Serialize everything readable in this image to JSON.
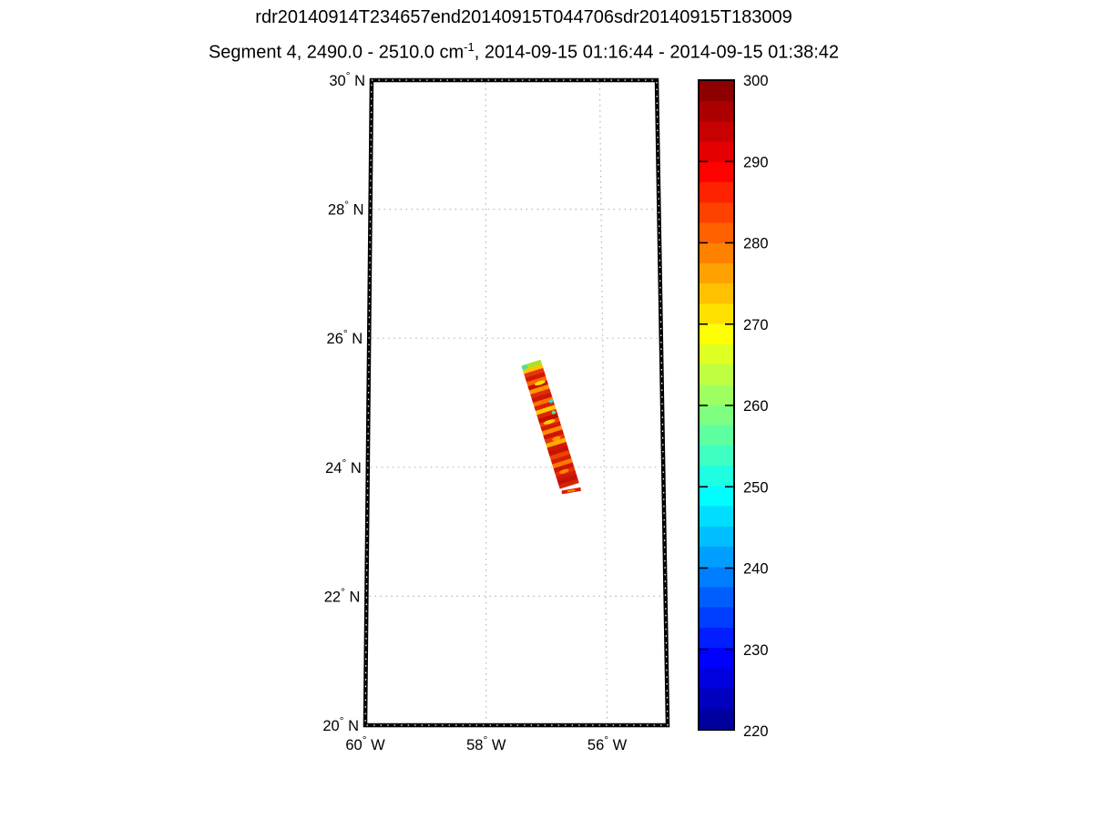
{
  "header": {
    "title_line1": "rdr20140914T234657end20140915T044706sdr20140915T183009",
    "title_line2_prefix": "Segment 4, 2490.0 - 2510.0 cm",
    "title_line2_sup": "-1",
    "title_line2_suffix": ", 2014-09-15 01:16:44 - 2014-09-15 01:38:42"
  },
  "chart_data": {
    "type": "heatmap",
    "subtype": "satellite-swath-on-map",
    "lat_axis": {
      "min": 20,
      "max": 30,
      "tick_values": [
        20,
        22,
        24,
        26,
        28,
        30
      ],
      "tick_suffix": "N",
      "gridline_values": [
        22,
        24,
        26,
        28
      ]
    },
    "lon_axis": {
      "min": -60,
      "max": -55,
      "tick_values": [
        -60,
        -58,
        -56
      ],
      "tick_suffix": "W",
      "gridline_values": [
        -58,
        -56
      ]
    },
    "grid": {
      "visible": true,
      "style": "dotted",
      "color": "#b5b5b5"
    },
    "frame": {
      "color": "#000000",
      "inner_dots_color": "#ffffff"
    },
    "colorbar": {
      "min": 220,
      "max": 300,
      "tick_values": [
        300,
        290,
        280,
        270,
        260,
        250,
        240,
        230,
        220
      ],
      "colormap": "jet",
      "jet_stops": [
        {
          "pos": 0.0,
          "color": "#00008f"
        },
        {
          "pos": 0.111,
          "color": "#0000ff"
        },
        {
          "pos": 0.361,
          "color": "#00ffff"
        },
        {
          "pos": 0.611,
          "color": "#ffff00"
        },
        {
          "pos": 0.861,
          "color": "#ff0000"
        },
        {
          "pos": 1.0,
          "color": "#800000"
        }
      ]
    },
    "swath": {
      "description": "observed brightness-temperature swath, mostly 285-300 range",
      "top": {
        "lat": 25.62,
        "lon": -57.23
      },
      "bottom": {
        "lat": 23.71,
        "lon": -56.59
      },
      "width_lon_deg": 0.342,
      "stripe_colors": [
        "#a8e32a",
        "#ffc400",
        "#e63311",
        "#cf1a02",
        "#ff6600",
        "#c91303",
        "#ff9500",
        "#df2a07",
        "#cc1505",
        "#ff7300",
        "#d92104",
        "#ffc800",
        "#dd2503",
        "#c01000",
        "#ef4102",
        "#d41b03",
        "#ff8c00",
        "#cc1404",
        "#e63607",
        "#ffae00",
        "#d11703",
        "#c91204",
        "#ee4403",
        "#d41e02",
        "#ff7700",
        "#cd1504",
        "#e22e03",
        "#d0190a",
        "#c41206",
        "#d22705"
      ],
      "speckles": [
        {
          "t": 0.02,
          "u": 0.92,
          "w": 0.3,
          "color": "#35e0c0"
        },
        {
          "t": 0.33,
          "u": 0.05,
          "w": 0.22,
          "color": "#2fd8e0"
        },
        {
          "t": 0.42,
          "u": 0.1,
          "w": 0.2,
          "color": "#4fe09a"
        },
        {
          "t": 0.17,
          "u": 0.35,
          "w": 0.55,
          "color": "#ffe000"
        },
        {
          "t": 0.48,
          "u": 0.5,
          "w": 0.6,
          "color": "#ffd000"
        },
        {
          "t": 0.62,
          "u": 0.4,
          "w": 0.45,
          "color": "#ff9900"
        },
        {
          "t": 0.88,
          "u": 0.55,
          "w": 0.5,
          "color": "#ff8800"
        }
      ],
      "tail": {
        "from": {
          "lat": 23.61,
          "lon": -56.72
        },
        "to": {
          "lat": 23.66,
          "lon": -56.4
        },
        "main_color": "#d42000",
        "accent_color": "#ff8800"
      }
    }
  }
}
